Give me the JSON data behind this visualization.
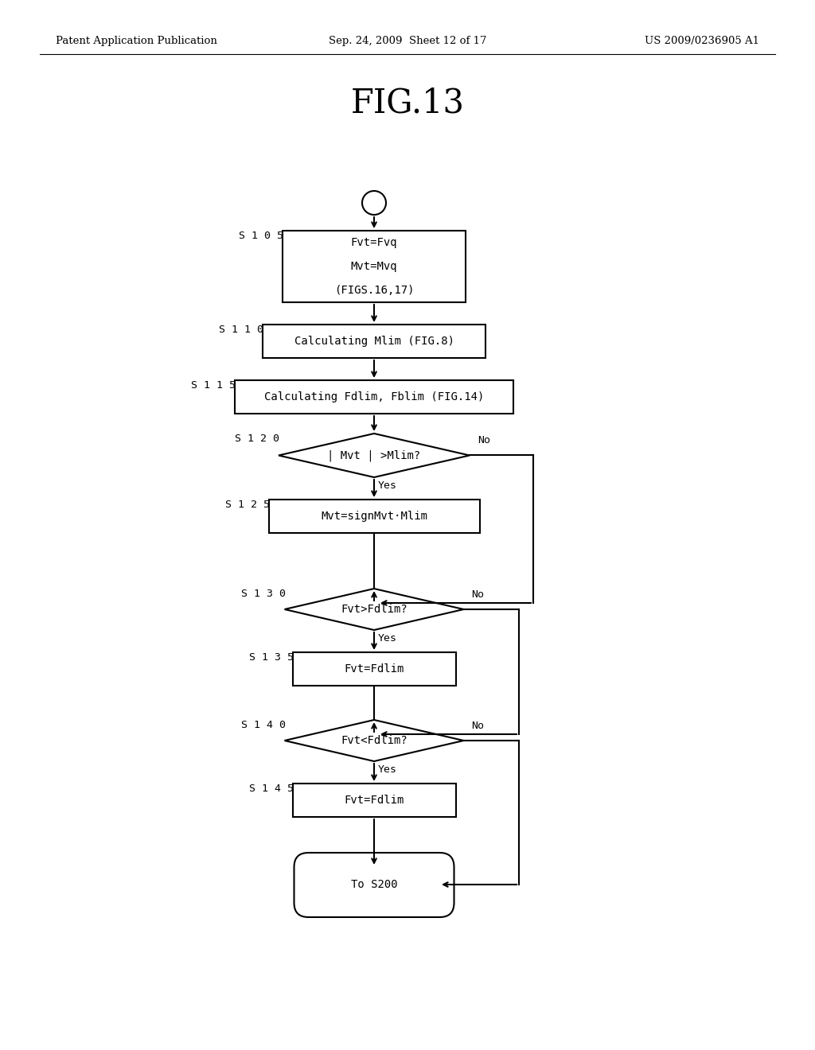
{
  "bg_color": "#ffffff",
  "header_left": "Patent Application Publication",
  "header_mid": "Sep. 24, 2009  Sheet 12 of 17",
  "header_right": "US 2009/0236905 A1",
  "title": "FIG.13",
  "fig_width": 10.24,
  "fig_height": 13.2,
  "dpi": 100
}
